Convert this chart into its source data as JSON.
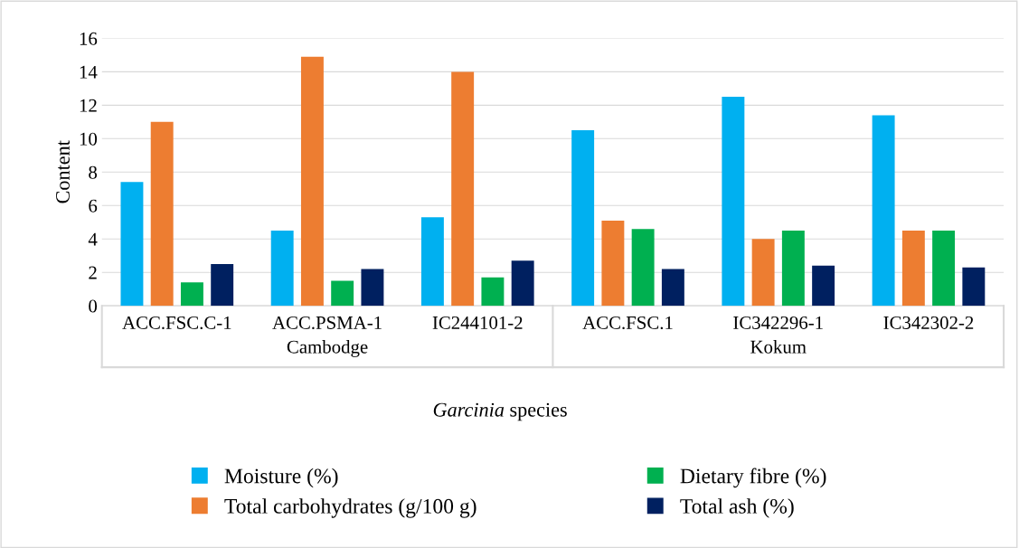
{
  "chart_data": {
    "type": "bar",
    "xlabel": "Garcinia species",
    "ylabel": "Content",
    "categories": [
      "ACC.FSC.C-1",
      "ACC.PSMA-1",
      "IC244101-2",
      "ACC.FSC.1",
      "IC342296-1",
      "IC342302-2"
    ],
    "annotations": [
      "Cambodge",
      "Kokum"
    ],
    "series": [
      {
        "name": "Moisture (%)",
        "color": "#00b0f0",
        "values": [
          7.4,
          4.5,
          5.3,
          10.5,
          12.5,
          11.4
        ]
      },
      {
        "name": "Total carbohydrates (g/100 g)",
        "color": "#ed7d31",
        "values": [
          11.0,
          14.9,
          14.0,
          5.1,
          4.0,
          4.5
        ]
      },
      {
        "name": "Dietary fibre (%)",
        "color": "#00b050",
        "values": [
          1.4,
          1.5,
          1.7,
          4.6,
          4.5,
          4.5
        ]
      },
      {
        "name": "Total ash (%)",
        "color": "#002060",
        "values": [
          2.5,
          2.2,
          2.7,
          2.2,
          2.4,
          2.3
        ]
      }
    ],
    "ylim": [
      0,
      16
    ],
    "yticks": [
      0,
      2,
      4,
      6,
      8,
      10,
      12,
      14,
      16
    ],
    "grid": "y",
    "legend": "bottom"
  }
}
